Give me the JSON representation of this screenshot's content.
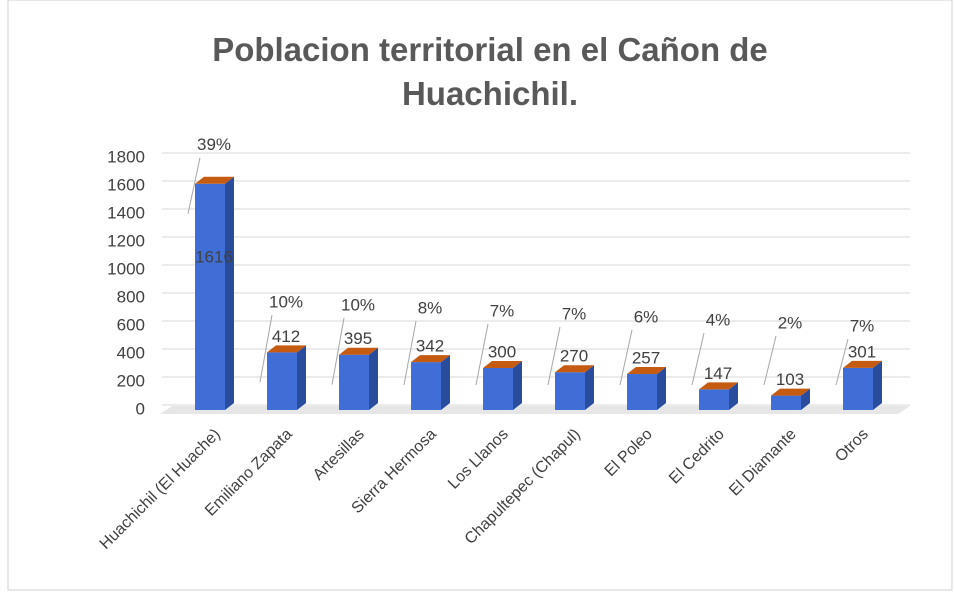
{
  "chart_data": {
    "type": "bar3d",
    "title": "Poblacion territorial en el Cañon de Huachichil.",
    "categories": [
      "Huachichil (El Huache)",
      "Emiliano Zapata",
      "Artesillas",
      "Sierra Hermosa",
      "Los Llanos",
      "Chapultepec (Chapul)",
      "El Poleo",
      "El Cedrito",
      "El Diamante",
      "Otros"
    ],
    "values": [
      1616,
      412,
      395,
      342,
      300,
      270,
      257,
      147,
      103,
      301
    ],
    "percent_labels": [
      "39%",
      "10%",
      "10%",
      "8%",
      "7%",
      "7%",
      "6%",
      "4%",
      "2%",
      "7%"
    ],
    "color": "#3f6fd6",
    "top_color": "#c55a11",
    "ylim": [
      0,
      1800
    ],
    "yticks": [
      0,
      200,
      400,
      600,
      800,
      1000,
      1200,
      1400,
      1600,
      1800
    ],
    "grid": true
  }
}
